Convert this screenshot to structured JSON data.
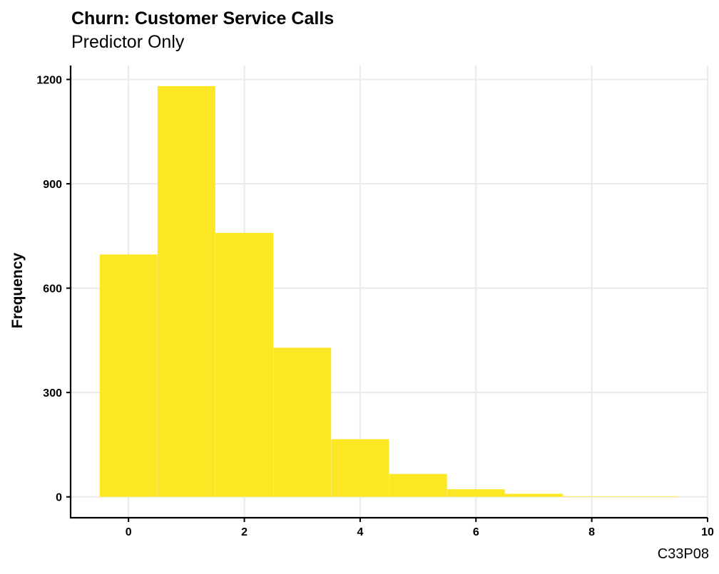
{
  "chart_data": {
    "type": "bar",
    "title": "Churn: Customer Service Calls",
    "subtitle": "Predictor Only",
    "caption": "C33P08",
    "xlabel": "",
    "ylabel": "Frequency",
    "bins": [
      {
        "x": 0,
        "value": 697
      },
      {
        "x": 1,
        "value": 1181
      },
      {
        "x": 2,
        "value": 759
      },
      {
        "x": 3,
        "value": 429
      },
      {
        "x": 4,
        "value": 166
      },
      {
        "x": 5,
        "value": 66
      },
      {
        "x": 6,
        "value": 22
      },
      {
        "x": 7,
        "value": 9
      },
      {
        "x": 8,
        "value": 2
      },
      {
        "x": 9,
        "value": 2
      }
    ],
    "bin_width": 1,
    "xlim": [
      -1,
      10
    ],
    "ylim": [
      -60,
      1240
    ],
    "x_ticks": [
      0,
      2,
      4,
      6,
      8,
      10
    ],
    "y_ticks": [
      0,
      300,
      600,
      900,
      1200
    ],
    "grid": true,
    "bar_color": "#FDE725"
  }
}
